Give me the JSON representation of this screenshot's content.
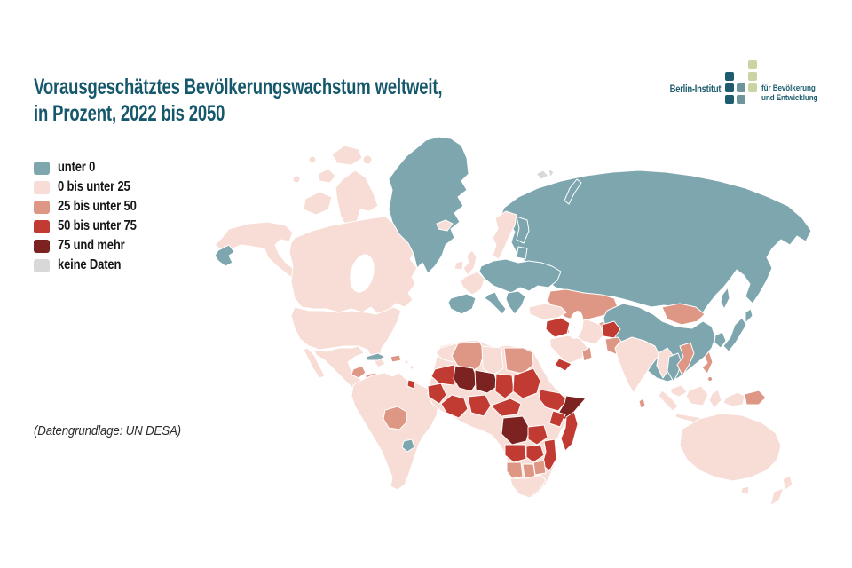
{
  "title": {
    "line1": "Vorausgeschätztes Bevölkerungswachstum weltweit,",
    "line2": "in Prozent, 2022 bis 2050"
  },
  "logo": {
    "name": "Berlin-Institut",
    "tagline1": "für Bevölkerung",
    "tagline2": "und Entwicklung",
    "palette": [
      "#c9d4a2",
      "#1d5d6e",
      "#6f959c"
    ],
    "grid": [
      [
        0,
        0,
        1
      ],
      [
        2,
        0,
        1
      ],
      [
        2,
        3,
        1
      ],
      [
        2,
        3,
        0
      ]
    ]
  },
  "legend": {
    "items": [
      {
        "key": "negative",
        "label": "unter 0",
        "color": "#7ea6af"
      },
      {
        "key": "low",
        "label": "0 bis unter 25",
        "color": "#f7ddd6"
      },
      {
        "key": "mid",
        "label": "25 bis unter 50",
        "color": "#df9785"
      },
      {
        "key": "high",
        "label": "50 bis unter 75",
        "color": "#c13b32"
      },
      {
        "key": "veryhigh",
        "label": "75 und mehr",
        "color": "#7c2321"
      },
      {
        "key": "nodata",
        "label": "keine Daten",
        "color": "#d8d8d8"
      }
    ]
  },
  "source": "(Datengrundlage: UN DESA)",
  "map": {
    "regions": {
      "greenland": "negative",
      "chukotka": "negative",
      "cuba": "negative",
      "uruguay": "negative",
      "finland": "negative",
      "baltics": "negative",
      "central-eastern-europe": "negative",
      "iberia": "negative",
      "italy": "negative",
      "balkans": "negative",
      "russia": "negative",
      "novaya-zemlya": "negative",
      "china": "negative",
      "korea": "negative",
      "japan-north": "negative",
      "japan-main": "negative",
      "sakhalin": "negative",
      "thailand": "negative",
      "iceland": "low",
      "ireland": "low",
      "uk": "low",
      "norway-sweden": "low",
      "france": "low",
      "alaska": "low",
      "canada": "low",
      "island-ellesmere": "low",
      "island-banks": "low",
      "island-baffin": "low",
      "island-victoria": "low",
      "island-dot-1": "low",
      "island-dot-2": "low",
      "island-dot-3": "low",
      "usa": "low",
      "baja-california": "low",
      "mexico": "low",
      "costa-rica-panama": "low",
      "caribbean-1": "low",
      "caribbean-2": "low",
      "south-america": "low",
      "turkey": "low",
      "iran": "low",
      "saudi-arabia": "low",
      "india": "low",
      "myanmar-bangladesh": "low",
      "malaysia": "low",
      "sumatra": "low",
      "java": "low",
      "borneo": "low",
      "sulawesi": "low",
      "west-papua": "low",
      "australia": "low",
      "tasmania": "low",
      "new-zealand-north": "low",
      "new-zealand-south": "low",
      "morocco": "low",
      "libya": "low",
      "south-africa": "low",
      "africa-base": "low",
      "guatemala": "mid",
      "honduras-nicaragua": "mid",
      "haiti": "mid",
      "bolivia": "mid",
      "algeria": "mid",
      "egypt": "mid",
      "kazakhstan": "mid",
      "central-asia": "mid",
      "mongolia": "mid",
      "pakistan": "mid",
      "laos-vietnam": "mid",
      "philippines": "mid",
      "philippines-2": "mid",
      "papua-new-guinea": "mid",
      "oman": "mid",
      "sri-lanka": "mid",
      "zimbabwe": "mid",
      "namibia": "mid",
      "botswana": "mid",
      "french-guiana": "high",
      "iraq-syria": "high",
      "afghanistan": "high",
      "yemen": "high",
      "mauritania": "high",
      "senegal-guinea": "high",
      "west-africa-coast": "high",
      "nigeria": "high",
      "cameroon-car": "high",
      "chad": "high",
      "sudan": "high",
      "ethiopia": "high",
      "kenya": "high",
      "tanzania": "high",
      "angola": "high",
      "zambia": "high",
      "mozambique": "high",
      "madagascar": "high",
      "mali": "veryhigh",
      "niger": "veryhigh",
      "drc": "veryhigh",
      "somalia": "veryhigh",
      "svalbard-1": "nodata",
      "svalbard-2": "nodata"
    }
  }
}
